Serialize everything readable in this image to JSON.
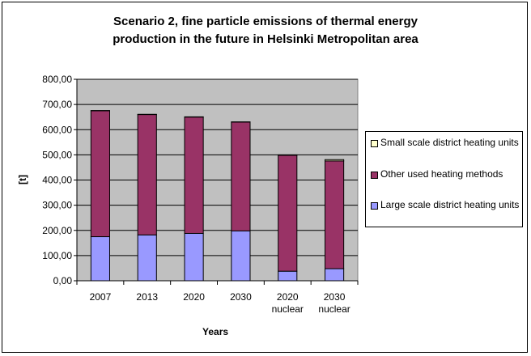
{
  "chart_data": {
    "type": "bar",
    "stacked": true,
    "title_lines": [
      "Scenario 2, fine particle emissions of thermal energy",
      "production in the future in Helsinki Metropolitan area"
    ],
    "xlabel": "Years",
    "ylabel": "[t]",
    "categories": [
      [
        "2007"
      ],
      [
        "2013"
      ],
      [
        "2020"
      ],
      [
        "2030"
      ],
      [
        "2020",
        "nuclear"
      ],
      [
        "2030",
        "nuclear"
      ]
    ],
    "ylim": [
      0,
      800
    ],
    "yticks": [
      0,
      100,
      200,
      300,
      400,
      500,
      600,
      700,
      800
    ],
    "ytick_labels": [
      "0,00",
      "100,00",
      "200,00",
      "300,00",
      "400,00",
      "500,00",
      "600,00",
      "700,00",
      "800,00"
    ],
    "grid": true,
    "legend_position": "right",
    "plot_background": "#c0c0c0",
    "series": [
      {
        "name": "Large scale district heating units",
        "color": "#9999ff",
        "values": [
          175,
          182,
          188,
          198,
          38,
          48
        ]
      },
      {
        "name": "Other used heating methods",
        "color": "#993366",
        "values": [
          500,
          478,
          462,
          432,
          460,
          428
        ]
      },
      {
        "name": "Small scale district heating units",
        "color": "#ffffcc",
        "values": [
          1,
          1,
          1,
          1,
          2,
          5
        ]
      }
    ],
    "legend_order": [
      2,
      1,
      0
    ]
  }
}
